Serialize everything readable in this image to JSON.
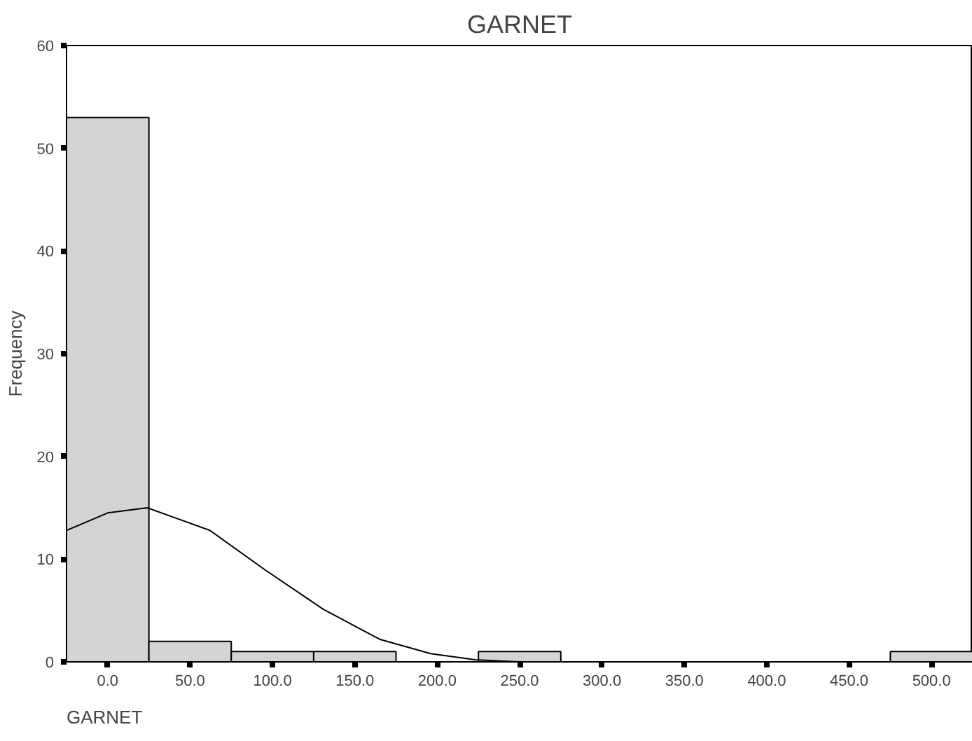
{
  "chart_data": {
    "type": "histogram",
    "title": "GARNET",
    "xlabel": "GARNET",
    "ylabel": "Frequency",
    "bins": [
      -25,
      25,
      75,
      125,
      175,
      225,
      275,
      325,
      375,
      425,
      475,
      525
    ],
    "values": [
      53,
      2,
      1,
      1,
      0,
      1,
      0,
      0,
      0,
      0,
      1
    ],
    "color": "#d4d4d4",
    "series": [
      {
        "type": "line",
        "color": "#000000",
        "x": [
          -25,
          0,
          24,
          62,
          96,
          131,
          165,
          196,
          223,
          250
        ],
        "values": [
          12.8,
          14.5,
          15.0,
          12.8,
          8.9,
          5.1,
          2.2,
          0.8,
          0.2,
          0.0
        ]
      }
    ],
    "xlim": [
      -25,
      525
    ],
    "ylim": [
      0,
      60
    ],
    "xticks": [
      {
        "value": 0,
        "label": "0.0"
      },
      {
        "value": 50,
        "label": "50.0"
      },
      {
        "value": 100,
        "label": "100.0"
      },
      {
        "value": 150,
        "label": "150.0"
      },
      {
        "value": 200,
        "label": "200.0"
      },
      {
        "value": 250,
        "label": "250.0"
      },
      {
        "value": 300,
        "label": "300.0"
      },
      {
        "value": 350,
        "label": "350.0"
      },
      {
        "value": 400,
        "label": "400.0"
      },
      {
        "value": 450,
        "label": "450.0"
      },
      {
        "value": 500,
        "label": "500.0"
      }
    ],
    "yticks": [
      0,
      10,
      20,
      30,
      40,
      50,
      60
    ],
    "grid": false
  }
}
